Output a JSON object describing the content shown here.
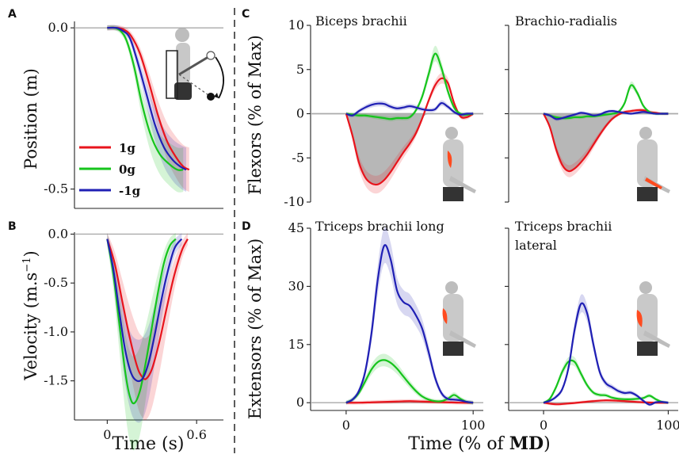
{
  "figure": {
    "panel_labels": [
      "A",
      "B",
      "C",
      "D"
    ],
    "shared_xlabel_prefix": "Time (% of ",
    "shared_xlabel_bold": "MD",
    "shared_xlabel_suffix": ")"
  },
  "colors": {
    "1g": "#e8141c",
    "0g": "#16c41c",
    "-1g": "#1f1fb4",
    "area": "#b7b7b7",
    "zero_line": "#aaaaaa"
  },
  "legend": [
    {
      "label": "1g",
      "color": "#e8141c"
    },
    {
      "label": "0g",
      "color": "#16c41c"
    },
    {
      "label": "-1g",
      "color": "#1f1fb4"
    }
  ],
  "chart_data": [
    {
      "id": "A",
      "type": "line",
      "ylabel": "Position (m)",
      "xlabel": "",
      "xlim": [
        -0.22,
        0.78
      ],
      "ylim": [
        -0.56,
        0.02
      ],
      "xticks": [],
      "xtick_labels": [],
      "yticks": [
        0.0,
        -0.5
      ],
      "ytick_labels": [
        "0.0",
        "-0.5"
      ],
      "series": [
        {
          "name": "1g",
          "color": "#e8141c",
          "x": [
            0,
            0.06,
            0.11,
            0.16,
            0.22,
            0.28,
            0.34,
            0.4,
            0.46,
            0.51,
            0.55
          ],
          "y": [
            0,
            0,
            -0.005,
            -0.025,
            -0.08,
            -0.17,
            -0.27,
            -0.35,
            -0.4,
            -0.43,
            -0.44
          ]
        },
        {
          "name": "0g",
          "color": "#16c41c",
          "x": [
            0,
            0.05,
            0.09,
            0.13,
            0.18,
            0.23,
            0.29,
            0.35,
            0.41,
            0.47,
            0.51
          ],
          "y": [
            0,
            0,
            -0.01,
            -0.04,
            -0.12,
            -0.23,
            -0.33,
            -0.39,
            -0.42,
            -0.44,
            -0.44
          ]
        },
        {
          "name": "-1g",
          "color": "#1f1fb4",
          "x": [
            0,
            0.06,
            0.1,
            0.15,
            0.2,
            0.26,
            0.32,
            0.38,
            0.44,
            0.49,
            0.53
          ],
          "y": [
            0,
            0,
            -0.008,
            -0.03,
            -0.1,
            -0.2,
            -0.3,
            -0.37,
            -0.41,
            -0.43,
            -0.44
          ]
        }
      ]
    },
    {
      "id": "B",
      "type": "line",
      "ylabel": "Velocity (m.s",
      "ylabel_sup": "−1",
      "ylabel_end": ")",
      "xlabel": "Time (s)",
      "xlim": [
        -0.22,
        0.78
      ],
      "ylim": [
        -1.9,
        0.02
      ],
      "xticks": [
        0,
        0.6
      ],
      "xtick_labels": [
        "0",
        "0.6"
      ],
      "yticks": [
        0.0,
        -0.5,
        -1.0,
        -1.5
      ],
      "ytick_labels": [
        "0.0",
        "-0.5",
        "-1.0",
        "-1.5"
      ],
      "series": [
        {
          "name": "1g",
          "color": "#e8141c",
          "x": [
            0,
            0.05,
            0.1,
            0.15,
            0.2,
            0.23,
            0.26,
            0.3,
            0.35,
            0.4,
            0.45,
            0.5,
            0.54
          ],
          "y": [
            -0.05,
            -0.3,
            -0.68,
            -1.05,
            -1.35,
            -1.45,
            -1.48,
            -1.38,
            -1.1,
            -0.75,
            -0.42,
            -0.17,
            -0.05
          ]
        },
        {
          "name": "0g",
          "color": "#16c41c",
          "x": [
            0,
            0.04,
            0.08,
            0.12,
            0.15,
            0.18,
            0.22,
            0.26,
            0.3,
            0.34,
            0.38,
            0.42,
            0.46
          ],
          "y": [
            -0.05,
            -0.4,
            -0.9,
            -1.4,
            -1.65,
            -1.73,
            -1.6,
            -1.3,
            -0.95,
            -0.6,
            -0.3,
            -0.12,
            -0.05
          ]
        },
        {
          "name": "-1g",
          "color": "#1f1fb4",
          "x": [
            0,
            0.04,
            0.08,
            0.12,
            0.16,
            0.2,
            0.24,
            0.28,
            0.32,
            0.36,
            0.4,
            0.45,
            0.5
          ],
          "y": [
            -0.05,
            -0.35,
            -0.78,
            -1.18,
            -1.42,
            -1.5,
            -1.47,
            -1.3,
            -1.02,
            -0.7,
            -0.42,
            -0.15,
            -0.05
          ]
        }
      ]
    },
    {
      "id": "C-left",
      "type": "line",
      "title": "Biceps brachii",
      "ylabel": "Flexors (% of Max)",
      "xlabel": "",
      "xlim": [
        -28,
        108
      ],
      "ylim": [
        -10,
        10
      ],
      "yticks": [
        10,
        5,
        0,
        -5,
        -10
      ],
      "ytick_labels": [
        "10",
        "5",
        "0",
        "-5",
        "-10"
      ],
      "series": [
        {
          "name": "1g",
          "color": "#e8141c",
          "x": [
            0,
            5,
            10,
            15,
            20,
            25,
            30,
            35,
            40,
            45,
            50,
            55,
            60,
            65,
            70,
            75,
            80,
            85,
            90,
            95,
            100
          ],
          "y": [
            0,
            -2.5,
            -5.5,
            -7.2,
            -7.9,
            -8.0,
            -7.5,
            -6.6,
            -5.5,
            -4.4,
            -3.4,
            -2.2,
            -0.5,
            1.5,
            3.2,
            4.0,
            3.5,
            1.2,
            -0.3,
            -0.4,
            0
          ]
        },
        {
          "name": "0g",
          "color": "#16c41c",
          "x": [
            0,
            5,
            10,
            15,
            20,
            25,
            30,
            35,
            40,
            45,
            50,
            55,
            60,
            65,
            70,
            75,
            80,
            85,
            90,
            95,
            100
          ],
          "y": [
            0,
            -0.1,
            -0.2,
            -0.2,
            -0.3,
            -0.4,
            -0.5,
            -0.6,
            -0.5,
            -0.5,
            -0.4,
            0.4,
            2.0,
            4.5,
            6.8,
            5.2,
            2.6,
            0.7,
            0.0,
            -0.1,
            0
          ]
        },
        {
          "name": "-1g",
          "color": "#1f1fb4",
          "x": [
            0,
            5,
            10,
            15,
            20,
            25,
            30,
            35,
            40,
            45,
            50,
            55,
            60,
            65,
            70,
            75,
            80,
            85,
            90,
            95,
            100
          ],
          "y": [
            0,
            -0.2,
            0.3,
            0.7,
            1.0,
            1.15,
            1.1,
            0.8,
            0.6,
            0.7,
            0.85,
            0.7,
            0.5,
            0.4,
            0.5,
            1.2,
            0.8,
            0.2,
            -0.1,
            0,
            0
          ]
        }
      ]
    },
    {
      "id": "C-right",
      "type": "line",
      "title": "Brachio-radialis",
      "xlim": [
        -28,
        108
      ],
      "ylim": [
        -10,
        10
      ],
      "series": [
        {
          "name": "1g",
          "color": "#e8141c",
          "x": [
            0,
            5,
            10,
            15,
            20,
            25,
            30,
            35,
            40,
            45,
            50,
            55,
            60,
            65,
            70,
            75,
            80,
            85,
            90,
            95,
            100
          ],
          "y": [
            0,
            -1.5,
            -4.0,
            -5.8,
            -6.5,
            -6.2,
            -5.5,
            -4.6,
            -3.5,
            -2.4,
            -1.4,
            -0.6,
            -0.1,
            0.2,
            0.3,
            0.4,
            0.4,
            0.2,
            0.1,
            0,
            0
          ]
        },
        {
          "name": "0g",
          "color": "#16c41c",
          "x": [
            0,
            5,
            10,
            15,
            20,
            25,
            30,
            35,
            40,
            45,
            50,
            55,
            60,
            65,
            70,
            75,
            80,
            85,
            90,
            95,
            100
          ],
          "y": [
            0,
            -0.2,
            -0.4,
            -0.5,
            -0.5,
            -0.4,
            -0.4,
            -0.3,
            -0.3,
            -0.2,
            -0.1,
            0.0,
            0.2,
            1.2,
            3.2,
            2.4,
            0.9,
            0.2,
            0.0,
            0,
            0
          ]
        },
        {
          "name": "-1g",
          "color": "#1f1fb4",
          "x": [
            0,
            5,
            10,
            15,
            20,
            25,
            30,
            35,
            40,
            45,
            50,
            55,
            60,
            65,
            70,
            75,
            80,
            85,
            90,
            95,
            100
          ],
          "y": [
            0,
            -0.2,
            -0.6,
            -0.5,
            -0.3,
            -0.1,
            0.1,
            0.0,
            -0.2,
            -0.1,
            0.2,
            0.3,
            0.2,
            0.1,
            0.0,
            0.1,
            0.2,
            0.1,
            0.0,
            0,
            0
          ]
        }
      ]
    },
    {
      "id": "D-left",
      "type": "line",
      "title": "Triceps brachii long",
      "ylabel": "Extensors (% of Max)",
      "xlabel": "",
      "xlim": [
        -28,
        108
      ],
      "ylim": [
        -2,
        45
      ],
      "xticks": [
        0,
        100
      ],
      "xtick_labels": [
        "0",
        "100"
      ],
      "yticks": [
        45,
        30,
        15,
        0
      ],
      "ytick_labels": [
        "45",
        "30",
        "15",
        "0"
      ],
      "series": [
        {
          "name": "1g",
          "color": "#e8141c",
          "x": [
            0,
            10,
            20,
            30,
            40,
            50,
            60,
            70,
            80,
            90,
            100
          ],
          "y": [
            0,
            0,
            0.1,
            0.2,
            0.3,
            0.4,
            0.3,
            0.2,
            0.1,
            0,
            0
          ]
        },
        {
          "name": "0g",
          "color": "#16c41c",
          "x": [
            0,
            5,
            10,
            15,
            20,
            25,
            30,
            35,
            40,
            45,
            50,
            55,
            60,
            65,
            70,
            75,
            80,
            85,
            90,
            95,
            100
          ],
          "y": [
            0,
            0.8,
            2.5,
            5.5,
            8.6,
            10.5,
            11.0,
            10.3,
            8.8,
            6.8,
            4.8,
            3.0,
            1.6,
            0.8,
            0.4,
            0.4,
            1.0,
            2.0,
            1.0,
            0.2,
            0
          ]
        },
        {
          "name": "-1g",
          "color": "#1f1fb4",
          "x": [
            0,
            5,
            10,
            15,
            20,
            25,
            30,
            35,
            40,
            45,
            50,
            55,
            60,
            65,
            70,
            75,
            80,
            85,
            90,
            95,
            100
          ],
          "y": [
            0,
            0.8,
            3.0,
            8.0,
            18.0,
            32.0,
            40.5,
            37.0,
            29.0,
            26.0,
            25.0,
            22.5,
            19.0,
            13.0,
            6.5,
            2.5,
            1.0,
            0.8,
            0.6,
            0.2,
            0
          ]
        }
      ]
    },
    {
      "id": "D-right",
      "type": "line",
      "title": "Triceps brachii",
      "title_line2": "lateral",
      "xlim": [
        -28,
        108
      ],
      "ylim": [
        -2,
        45
      ],
      "xticks": [
        0,
        100
      ],
      "xtick_labels": [
        "0",
        "100"
      ],
      "series": [
        {
          "name": "1g",
          "color": "#e8141c",
          "x": [
            0,
            10,
            20,
            30,
            40,
            50,
            60,
            70,
            80,
            90,
            100
          ],
          "y": [
            0,
            -0.4,
            -0.2,
            0.1,
            0.4,
            0.6,
            0.5,
            0.3,
            0.1,
            0,
            0
          ]
        },
        {
          "name": "0g",
          "color": "#16c41c",
          "x": [
            0,
            5,
            10,
            15,
            20,
            25,
            30,
            35,
            40,
            45,
            50,
            55,
            60,
            65,
            70,
            75,
            80,
            85,
            90,
            95,
            100
          ],
          "y": [
            0,
            1.0,
            4.0,
            8.0,
            10.6,
            10.5,
            7.5,
            4.5,
            2.6,
            2.0,
            1.9,
            1.3,
            1.0,
            0.9,
            0.9,
            1.0,
            1.2,
            1.8,
            0.9,
            0.2,
            0
          ]
        },
        {
          "name": "-1g",
          "color": "#1f1fb4",
          "x": [
            0,
            5,
            10,
            15,
            20,
            25,
            30,
            35,
            40,
            45,
            50,
            55,
            60,
            65,
            70,
            75,
            80,
            85,
            90,
            95,
            100
          ],
          "y": [
            0,
            0.5,
            1.5,
            3.5,
            9.0,
            19.0,
            25.5,
            23.0,
            15.0,
            8.0,
            5.0,
            4.0,
            3.0,
            2.5,
            2.6,
            1.8,
            0.5,
            -0.5,
            0.1,
            0.2,
            0
          ]
        }
      ]
    }
  ]
}
